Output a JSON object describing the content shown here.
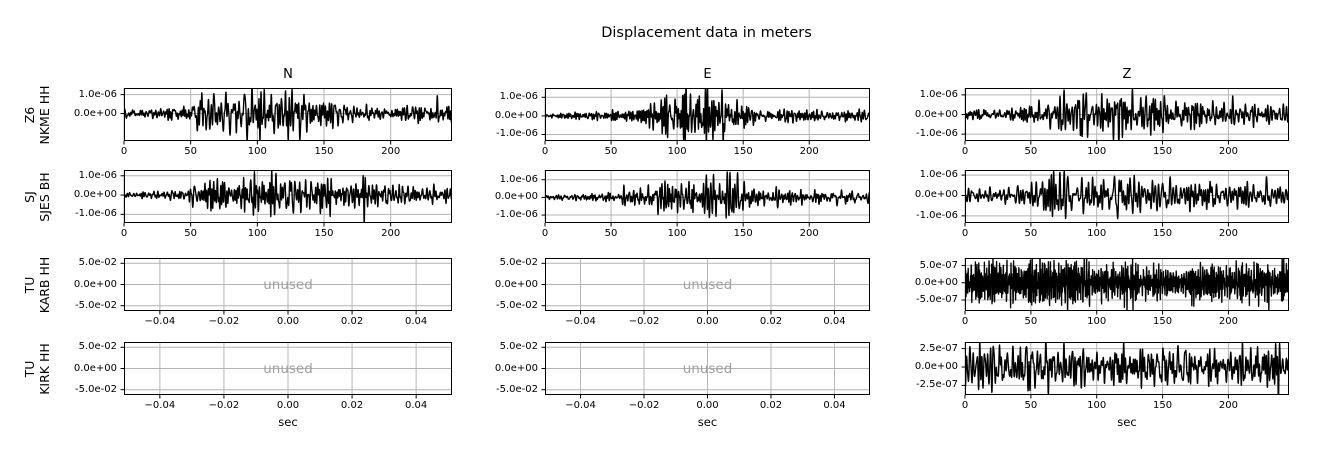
{
  "figure": {
    "background": "#ffffff",
    "trace_color": "#000000",
    "grid_color": "#b4b4b4",
    "spine_color": "#000000",
    "unused_color": "#a0a0a0"
  },
  "chart_data": {
    "type": "line",
    "suptitle": "Displacement data in meters",
    "xlabel": "sec",
    "unused_label": "unused",
    "columns": [
      "N",
      "E",
      "Z"
    ],
    "rows": [
      {
        "network": "Z6",
        "station_channel": "NKME HH"
      },
      {
        "network": "SJ",
        "station_channel": "SJES BH"
      },
      {
        "network": "TU",
        "station_channel": "KARB HH"
      },
      {
        "network": "TU",
        "station_channel": "KIRK HH"
      }
    ],
    "subplots": [
      {
        "row": 0,
        "col": 0,
        "station": "Z6 NKME HH",
        "component": "N",
        "kind": "trace",
        "xlim": [
          0,
          246
        ],
        "xticks": [
          {
            "v": 0,
            "label": "0"
          },
          {
            "v": 50,
            "label": "50"
          },
          {
            "v": 100,
            "label": "100"
          },
          {
            "v": 150,
            "label": "150"
          },
          {
            "v": 200,
            "label": "200"
          }
        ],
        "ylim": [
          -1.45e-06,
          1.35e-06
        ],
        "yticks": [
          {
            "v": 1e-06,
            "label": "1.0e-06"
          },
          {
            "v": 0,
            "label": "0.0e+00"
          }
        ],
        "env_t": [
          0,
          40,
          55,
          65,
          90,
          115,
          130,
          145,
          160,
          185,
          205,
          228,
          240,
          246
        ],
        "env_a": [
          2.5e-07,
          3.2e-07,
          8e-07,
          1.25e-06,
          1.35e-06,
          1.3e-06,
          1.15e-06,
          7.5e-07,
          5.5e-07,
          4e-07,
          3.8e-07,
          6e-07,
          5e-07,
          4.5e-07
        ],
        "freq_band_hz": [
          0.1,
          0.85
        ]
      },
      {
        "row": 0,
        "col": 1,
        "station": "Z6 NKME HH",
        "component": "E",
        "kind": "trace",
        "xlim": [
          0,
          246
        ],
        "xticks": [
          {
            "v": 0,
            "label": "0"
          },
          {
            "v": 50,
            "label": "50"
          },
          {
            "v": 100,
            "label": "100"
          },
          {
            "v": 150,
            "label": "150"
          },
          {
            "v": 200,
            "label": "200"
          }
        ],
        "ylim": [
          -1.35e-06,
          1.5e-06
        ],
        "yticks": [
          {
            "v": 1e-06,
            "label": "1.0e-06"
          },
          {
            "v": 0,
            "label": "0.0e+00"
          },
          {
            "v": -1e-06,
            "label": "-1.0e-06"
          }
        ],
        "env_t": [
          0,
          45,
          60,
          75,
          90,
          105,
          118,
          128,
          140,
          152,
          170,
          195,
          220,
          246
        ],
        "env_a": [
          1.5e-07,
          2.2e-07,
          3.5e-07,
          6e-07,
          1e-06,
          1.3e-06,
          1.45e-06,
          1.35e-06,
          1e-06,
          6e-07,
          4e-07,
          3e-07,
          2.8e-07,
          3e-07
        ],
        "freq_band_hz": [
          0.12,
          0.9
        ]
      },
      {
        "row": 0,
        "col": 2,
        "station": "Z6 NKME HH",
        "component": "Z",
        "kind": "trace",
        "xlim": [
          0,
          246
        ],
        "xticks": [
          {
            "v": 0,
            "label": "0"
          },
          {
            "v": 50,
            "label": "50"
          },
          {
            "v": 100,
            "label": "100"
          },
          {
            "v": 150,
            "label": "150"
          },
          {
            "v": 200,
            "label": "200"
          }
        ],
        "ylim": [
          -1.35e-06,
          1.35e-06
        ],
        "yticks": [
          {
            "v": 1e-06,
            "label": "1.0e-06"
          },
          {
            "v": 0,
            "label": "0.0e+00"
          },
          {
            "v": -1e-06,
            "label": "-1.0e-06"
          }
        ],
        "env_t": [
          0,
          30,
          50,
          65,
          85,
          110,
          125,
          140,
          155,
          175,
          195,
          215,
          235,
          246
        ],
        "env_a": [
          3.5e-07,
          3.5e-07,
          5e-07,
          8.5e-07,
          1e-06,
          1.35e-06,
          1.2e-06,
          1e-06,
          8e-07,
          6.5e-07,
          7e-07,
          6e-07,
          6.5e-07,
          5.5e-07
        ],
        "freq_band_hz": [
          0.1,
          0.8
        ]
      },
      {
        "row": 1,
        "col": 0,
        "station": "SJ SJES BH",
        "component": "N",
        "kind": "trace",
        "xlim": [
          0,
          246
        ],
        "xticks": [
          {
            "v": 0,
            "label": "0"
          },
          {
            "v": 50,
            "label": "50"
          },
          {
            "v": 100,
            "label": "100"
          },
          {
            "v": 150,
            "label": "150"
          },
          {
            "v": 200,
            "label": "200"
          }
        ],
        "ylim": [
          -1.45e-06,
          1.3e-06
        ],
        "yticks": [
          {
            "v": 1e-06,
            "label": "1.0e-06"
          },
          {
            "v": 0,
            "label": "0.0e+00"
          },
          {
            "v": -1e-06,
            "label": "-1.0e-06"
          }
        ],
        "env_t": [
          0,
          40,
          55,
          70,
          90,
          105,
          122,
          135,
          155,
          175,
          195,
          215,
          235,
          246
        ],
        "env_a": [
          2.2e-07,
          2.8e-07,
          5.5e-07,
          9e-07,
          9.5e-07,
          1e-06,
          1.3e-06,
          9.5e-07,
          9e-07,
          8e-07,
          6.5e-07,
          6e-07,
          5.5e-07,
          4.5e-07
        ],
        "freq_band_hz": [
          0.12,
          0.9
        ]
      },
      {
        "row": 1,
        "col": 1,
        "station": "SJ SJES BH",
        "component": "E",
        "kind": "trace",
        "xlim": [
          0,
          246
        ],
        "xticks": [
          {
            "v": 0,
            "label": "0"
          },
          {
            "v": 50,
            "label": "50"
          },
          {
            "v": 100,
            "label": "100"
          },
          {
            "v": 150,
            "label": "150"
          },
          {
            "v": 200,
            "label": "200"
          }
        ],
        "ylim": [
          -1.45e-06,
          1.55e-06
        ],
        "yticks": [
          {
            "v": 1e-06,
            "label": "1.0e-06"
          },
          {
            "v": 0,
            "label": "0.0e+00"
          },
          {
            "v": -1e-06,
            "label": "-1.0e-06"
          }
        ],
        "env_t": [
          0,
          45,
          60,
          75,
          95,
          110,
          125,
          133,
          142,
          155,
          170,
          190,
          215,
          246
        ],
        "env_a": [
          1.5e-07,
          2e-07,
          4.5e-07,
          6e-07,
          8e-07,
          9e-07,
          1.2e-06,
          1.5e-06,
          1.3e-06,
          7e-07,
          5e-07,
          4e-07,
          3.5e-07,
          3e-07
        ],
        "freq_band_hz": [
          0.12,
          0.95
        ]
      },
      {
        "row": 1,
        "col": 2,
        "station": "SJ SJES BH",
        "component": "Z",
        "kind": "trace",
        "xlim": [
          0,
          246
        ],
        "xticks": [
          {
            "v": 0,
            "label": "0"
          },
          {
            "v": 50,
            "label": "50"
          },
          {
            "v": 100,
            "label": "100"
          },
          {
            "v": 150,
            "label": "150"
          },
          {
            "v": 200,
            "label": "200"
          }
        ],
        "ylim": [
          -1.35e-06,
          1.25e-06
        ],
        "yticks": [
          {
            "v": 1e-06,
            "label": "1.0e-06"
          },
          {
            "v": 0,
            "label": "0.0e+00"
          },
          {
            "v": -1e-06,
            "label": "-1.0e-06"
          }
        ],
        "env_t": [
          0,
          40,
          55,
          65,
          80,
          95,
          110,
          125,
          140,
          155,
          175,
          195,
          215,
          230,
          246
        ],
        "env_a": [
          3.5e-07,
          3.5e-07,
          7.5e-07,
          1.1e-06,
          1.15e-06,
          1.25e-06,
          9.5e-07,
          1.1e-06,
          8.5e-07,
          6.5e-07,
          7.5e-07,
          5.5e-07,
          7e-07,
          5.5e-07,
          5e-07
        ],
        "freq_band_hz": [
          0.09,
          0.65
        ]
      },
      {
        "row": 2,
        "col": 0,
        "station": "TU KARB HH",
        "component": "N",
        "kind": "unused",
        "xlim": [
          -0.0512,
          0.0512
        ],
        "xticks": [
          {
            "v": -0.04,
            "label": "−0.04"
          },
          {
            "v": -0.02,
            "label": "−0.02"
          },
          {
            "v": 0,
            "label": "0.00"
          },
          {
            "v": 0.02,
            "label": "0.02"
          },
          {
            "v": 0.04,
            "label": "0.04"
          }
        ],
        "ylim": [
          -0.0625,
          0.0625
        ],
        "yticks": [
          {
            "v": 0.05,
            "label": "5.0e-02"
          },
          {
            "v": 0,
            "label": "0.0e+00"
          },
          {
            "v": -0.05,
            "label": "-5.0e-02"
          }
        ]
      },
      {
        "row": 2,
        "col": 1,
        "station": "TU KARB HH",
        "component": "E",
        "kind": "unused",
        "xlim": [
          -0.0512,
          0.0512
        ],
        "xticks": [
          {
            "v": -0.04,
            "label": "−0.04"
          },
          {
            "v": -0.02,
            "label": "−0.02"
          },
          {
            "v": 0,
            "label": "0.00"
          },
          {
            "v": 0.02,
            "label": "0.02"
          },
          {
            "v": 0.04,
            "label": "0.04"
          }
        ],
        "ylim": [
          -0.0625,
          0.0625
        ],
        "yticks": [
          {
            "v": 0.05,
            "label": "5.0e-02"
          },
          {
            "v": 0,
            "label": "0.0e+00"
          },
          {
            "v": -0.05,
            "label": "-5.0e-02"
          }
        ]
      },
      {
        "row": 2,
        "col": 2,
        "station": "TU KARB HH",
        "component": "Z",
        "kind": "trace",
        "xlim": [
          0,
          246
        ],
        "xticks": [
          {
            "v": 0,
            "label": "0"
          },
          {
            "v": 50,
            "label": "50"
          },
          {
            "v": 100,
            "label": "100"
          },
          {
            "v": 150,
            "label": "150"
          },
          {
            "v": 200,
            "label": "200"
          }
        ],
        "ylim": [
          -8.2e-07,
          7.2e-07
        ],
        "yticks": [
          {
            "v": 5e-07,
            "label": "5.0e-07"
          },
          {
            "v": 0,
            "label": "0.0e+00"
          },
          {
            "v": -5e-07,
            "label": "-5.0e-07"
          }
        ],
        "env_t": [
          0,
          25,
          45,
          65,
          80,
          95,
          115,
          130,
          150,
          170,
          185,
          200,
          220,
          235,
          246
        ],
        "env_a": [
          5.5e-07,
          6.5e-07,
          6e-07,
          6.8e-07,
          7.5e-07,
          5.5e-07,
          6e-07,
          6.8e-07,
          5.5e-07,
          5.8e-07,
          6.5e-07,
          5.2e-07,
          6e-07,
          5.5e-07,
          5.8e-07
        ],
        "freq_band_hz": [
          0.35,
          2.2
        ]
      },
      {
        "row": 3,
        "col": 0,
        "station": "TU KIRK HH",
        "component": "N",
        "kind": "unused",
        "xlim": [
          -0.0512,
          0.0512
        ],
        "xticks": [
          {
            "v": -0.04,
            "label": "−0.04"
          },
          {
            "v": -0.02,
            "label": "−0.02"
          },
          {
            "v": 0,
            "label": "0.00"
          },
          {
            "v": 0.02,
            "label": "0.02"
          },
          {
            "v": 0.04,
            "label": "0.04"
          }
        ],
        "ylim": [
          -0.0625,
          0.0625
        ],
        "yticks": [
          {
            "v": 0.05,
            "label": "5.0e-02"
          },
          {
            "v": 0,
            "label": "0.0e+00"
          },
          {
            "v": -0.05,
            "label": "-5.0e-02"
          }
        ]
      },
      {
        "row": 3,
        "col": 1,
        "station": "TU KIRK HH",
        "component": "E",
        "kind": "unused",
        "xlim": [
          -0.0512,
          0.0512
        ],
        "xticks": [
          {
            "v": -0.04,
            "label": "−0.04"
          },
          {
            "v": -0.02,
            "label": "−0.02"
          },
          {
            "v": 0,
            "label": "0.00"
          },
          {
            "v": 0.02,
            "label": "0.02"
          },
          {
            "v": 0.04,
            "label": "0.04"
          }
        ],
        "ylim": [
          -0.0625,
          0.0625
        ],
        "yticks": [
          {
            "v": 0.05,
            "label": "5.0e-02"
          },
          {
            "v": 0,
            "label": "0.0e+00"
          },
          {
            "v": -0.05,
            "label": "-5.0e-02"
          }
        ]
      },
      {
        "row": 3,
        "col": 2,
        "station": "TU KIRK HH",
        "component": "Z",
        "kind": "trace",
        "xlim": [
          0,
          246
        ],
        "xticks": [
          {
            "v": 0,
            "label": "0"
          },
          {
            "v": 50,
            "label": "50"
          },
          {
            "v": 100,
            "label": "100"
          },
          {
            "v": 150,
            "label": "150"
          },
          {
            "v": 200,
            "label": "200"
          }
        ],
        "ylim": [
          -3.8e-07,
          3.4e-07
        ],
        "yticks": [
          {
            "v": 2.5e-07,
            "label": "2.5e-07"
          },
          {
            "v": 0,
            "label": "0.0e+00"
          },
          {
            "v": -2.5e-07,
            "label": "-2.5e-07"
          }
        ],
        "env_t": [
          0,
          15,
          25,
          40,
          55,
          70,
          85,
          100,
          115,
          130,
          145,
          160,
          175,
          190,
          205,
          220,
          235,
          246
        ],
        "env_a": [
          3.2e-07,
          3.4e-07,
          3.6e-07,
          3e-07,
          3.2e-07,
          3e-07,
          2.8e-07,
          2.6e-07,
          3.2e-07,
          2.8e-07,
          3e-07,
          2.9e-07,
          2.7e-07,
          2.8e-07,
          3e-07,
          3e-07,
          2.9e-07,
          2.6e-07
        ],
        "freq_band_hz": [
          0.12,
          0.8
        ]
      }
    ]
  }
}
